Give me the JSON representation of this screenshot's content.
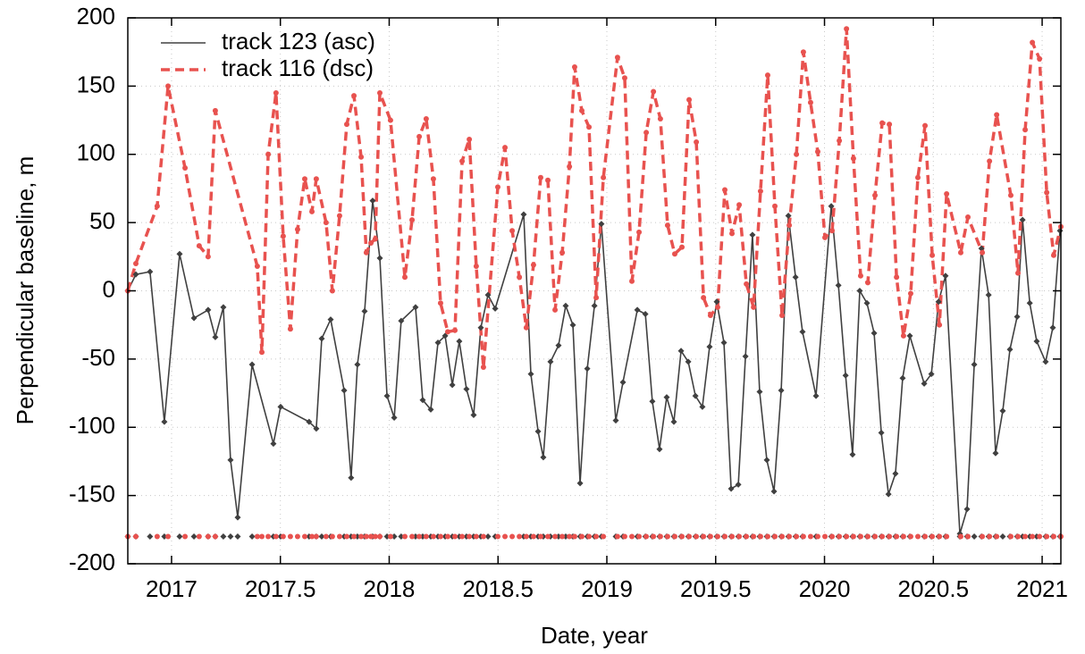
{
  "chart_data": {
    "type": "line",
    "xlabel": "Date, year",
    "ylabel": "Perpendicular baseline, m",
    "xlim": [
      2016.799,
      2021.086
    ],
    "ylim": [
      -200,
      200
    ],
    "xticks": [
      2017,
      2017.5,
      2018,
      2018.5,
      2019,
      2019.5,
      2020,
      2020.5,
      2021
    ],
    "yticks": [
      -200,
      -150,
      -100,
      -50,
      0,
      50,
      100,
      150,
      200
    ],
    "grid": true,
    "legend": "upper left",
    "date_marker_level": -180,
    "series": [
      {
        "name": "track 123 (asc)",
        "color": "#404040",
        "dash": false,
        "marker": "diamond",
        "x": [
          2016.799,
          2016.836,
          2016.901,
          2016.967,
          2017.037,
          2017.103,
          2017.168,
          2017.201,
          2017.238,
          2017.271,
          2017.304,
          2017.37,
          2017.468,
          2017.501,
          2017.632,
          2017.665,
          2017.69,
          2017.731,
          2017.793,
          2017.825,
          2017.854,
          2017.887,
          2017.924,
          2017.957,
          2017.99,
          2018.023,
          2018.055,
          2018.121,
          2018.154,
          2018.191,
          2018.224,
          2018.257,
          2018.29,
          2018.322,
          2018.355,
          2018.388,
          2018.421,
          2018.454,
          2018.487,
          2018.618,
          2018.651,
          2018.684,
          2018.708,
          2018.741,
          2018.778,
          2018.811,
          2018.844,
          2018.877,
          2018.91,
          2018.943,
          2018.975,
          2019.041,
          2019.074,
          2019.14,
          2019.177,
          2019.209,
          2019.242,
          2019.275,
          2019.308,
          2019.341,
          2019.374,
          2019.407,
          2019.439,
          2019.472,
          2019.505,
          2019.538,
          2019.571,
          2019.604,
          2019.637,
          2019.669,
          2019.702,
          2019.735,
          2019.768,
          2019.801,
          2019.834,
          2019.867,
          2019.899,
          2019.961,
          2020.031,
          2020.064,
          2020.097,
          2020.129,
          2020.162,
          2020.195,
          2020.228,
          2020.261,
          2020.294,
          2020.326,
          2020.359,
          2020.392,
          2020.458,
          2020.491,
          2020.524,
          2020.556,
          2020.622,
          2020.655,
          2020.688,
          2020.721,
          2020.754,
          2020.786,
          2020.819,
          2020.852,
          2020.885,
          2020.91,
          2020.943,
          2020.975,
          2021.016,
          2021.049,
          2021.082
        ],
        "values": [
          0,
          12,
          14,
          -96,
          27,
          -20,
          -14,
          -34,
          -12,
          -124,
          -166,
          -54,
          -112,
          -85,
          -96,
          -101,
          -35,
          -21,
          -73,
          -137,
          -54,
          -15,
          66,
          24,
          -77,
          -93,
          -22,
          -12,
          -80,
          -87,
          -38,
          -33,
          -69,
          -37,
          -72,
          -91,
          -27,
          -3,
          -13,
          56,
          -61,
          -103,
          -122,
          -52,
          -40,
          -11,
          -25,
          -141,
          -57,
          -11,
          49,
          -95,
          -67,
          -14,
          -17,
          -81,
          -116,
          -78,
          -96,
          -44,
          -52,
          -77,
          -85,
          -41,
          -8,
          -38,
          -145,
          -142,
          -48,
          41,
          -74,
          -124,
          -147,
          -73,
          55,
          10,
          -30,
          -77,
          62,
          4,
          -62,
          -120,
          0,
          -9,
          -31,
          -104,
          -149,
          -134,
          -64,
          -33,
          -68,
          -61,
          -8,
          11,
          -178,
          -160,
          -54,
          31,
          -3,
          -119,
          -88,
          -43,
          -19,
          52,
          -9,
          -37,
          -52,
          -27,
          44
        ]
      },
      {
        "name": "track 116 (dsc)",
        "color": "#e8524f",
        "dash": true,
        "marker": "circle",
        "x": [
          2016.799,
          2016.836,
          2016.934,
          2016.984,
          2017.062,
          2017.127,
          2017.168,
          2017.201,
          2017.394,
          2017.415,
          2017.444,
          2017.48,
          2017.513,
          2017.546,
          2017.579,
          2017.612,
          2017.645,
          2017.665,
          2017.71,
          2017.739,
          2017.772,
          2017.805,
          2017.838,
          2017.871,
          2017.895,
          2017.916,
          2017.936,
          2017.957,
          2018.006,
          2018.072,
          2018.105,
          2018.138,
          2018.17,
          2018.203,
          2018.236,
          2018.269,
          2018.302,
          2018.335,
          2018.368,
          2018.4,
          2018.433,
          2018.499,
          2018.532,
          2018.565,
          2018.598,
          2018.63,
          2018.663,
          2018.696,
          2018.729,
          2018.762,
          2018.795,
          2018.828,
          2018.852,
          2018.885,
          2018.918,
          2018.951,
          2018.984,
          2019.049,
          2019.082,
          2019.115,
          2019.148,
          2019.181,
          2019.214,
          2019.246,
          2019.279,
          2019.312,
          2019.345,
          2019.378,
          2019.411,
          2019.444,
          2019.476,
          2019.509,
          2019.542,
          2019.575,
          2019.608,
          2019.641,
          2019.674,
          2019.706,
          2019.739,
          2019.772,
          2019.805,
          2019.838,
          2019.871,
          2019.903,
          2019.936,
          2019.969,
          2020.002,
          2020.035,
          2020.068,
          2020.101,
          2020.133,
          2020.166,
          2020.199,
          2020.232,
          2020.265,
          2020.298,
          2020.331,
          2020.363,
          2020.396,
          2020.429,
          2020.462,
          2020.495,
          2020.528,
          2020.561,
          2020.626,
          2020.659,
          2020.725,
          2020.758,
          2020.791,
          2020.856,
          2020.889,
          2020.922,
          2020.955,
          2020.988,
          2021.021,
          2021.053,
          2021.086
        ],
        "values": [
          0,
          20,
          62,
          150,
          90,
          33,
          25,
          132,
          18,
          -45,
          100,
          145,
          40,
          -28,
          45,
          82,
          58,
          82,
          50,
          0,
          55,
          122,
          143,
          98,
          28,
          35,
          38,
          145,
          125,
          10,
          52,
          113,
          126,
          82,
          -9,
          -30,
          -29,
          95,
          111,
          18,
          -56,
          76,
          105,
          44,
          10,
          -27,
          19,
          83,
          81,
          -14,
          28,
          91,
          164,
          132,
          120,
          -5,
          83,
          171,
          156,
          7,
          43,
          116,
          146,
          126,
          48,
          27,
          32,
          140,
          109,
          -5,
          -18,
          -12,
          74,
          42,
          63,
          5,
          -12,
          73,
          158,
          62,
          -18,
          48,
          100,
          175,
          138,
          102,
          39,
          44,
          110,
          192,
          97,
          11,
          6,
          70,
          123,
          122,
          10,
          -33,
          -2,
          83,
          121,
          26,
          -25,
          71,
          28,
          54,
          28,
          95,
          129,
          70,
          13,
          118,
          182,
          170,
          72,
          26,
          47
        ]
      }
    ]
  }
}
